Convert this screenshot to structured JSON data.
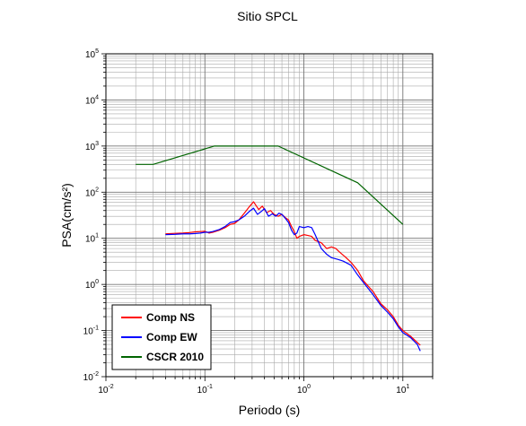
{
  "chart_data": {
    "type": "line",
    "title": "Sitio SPCL",
    "xlabel": "Periodo (s)",
    "ylabel": "PSA(cm/s²)",
    "xscale": "log",
    "yscale": "log",
    "xlim": [
      0.01,
      20
    ],
    "ylim": [
      0.01,
      100000
    ],
    "x_ticks": [
      {
        "base": "10",
        "exp": "-2"
      },
      {
        "base": "10",
        "exp": "-1"
      },
      {
        "base": "10",
        "exp": "0"
      },
      {
        "base": "10",
        "exp": "1"
      }
    ],
    "y_ticks": [
      {
        "base": "10",
        "exp": "-2"
      },
      {
        "base": "10",
        "exp": "-1"
      },
      {
        "base": "10",
        "exp": "0"
      },
      {
        "base": "10",
        "exp": "1"
      },
      {
        "base": "10",
        "exp": "2"
      },
      {
        "base": "10",
        "exp": "3"
      },
      {
        "base": "10",
        "exp": "4"
      },
      {
        "base": "10",
        "exp": "5"
      }
    ],
    "grid": true,
    "legend_position": "bottom-left",
    "series": [
      {
        "name": "Comp NS",
        "color": "#ff0000",
        "points": [
          [
            0.04,
            12.5
          ],
          [
            0.05,
            12.8
          ],
          [
            0.06,
            13.0
          ],
          [
            0.07,
            13.3
          ],
          [
            0.08,
            13.8
          ],
          [
            0.09,
            14.0
          ],
          [
            0.1,
            14.2
          ],
          [
            0.11,
            13.0
          ],
          [
            0.12,
            13.5
          ],
          [
            0.14,
            15.0
          ],
          [
            0.16,
            17.0
          ],
          [
            0.18,
            20.0
          ],
          [
            0.2,
            21.0
          ],
          [
            0.22,
            25.0
          ],
          [
            0.25,
            35.0
          ],
          [
            0.28,
            48.0
          ],
          [
            0.31,
            62.0
          ],
          [
            0.35,
            42.0
          ],
          [
            0.38,
            50.0
          ],
          [
            0.42,
            36.0
          ],
          [
            0.46,
            40.0
          ],
          [
            0.5,
            33.0
          ],
          [
            0.55,
            30.0
          ],
          [
            0.6,
            33.0
          ],
          [
            0.65,
            28.0
          ],
          [
            0.7,
            25.0
          ],
          [
            0.75,
            18.0
          ],
          [
            0.8,
            14.0
          ],
          [
            0.85,
            10.0
          ],
          [
            0.9,
            11.0
          ],
          [
            1.0,
            12.0
          ],
          [
            1.1,
            11.5
          ],
          [
            1.2,
            11.0
          ],
          [
            1.3,
            9.0
          ],
          [
            1.5,
            8.0
          ],
          [
            1.7,
            6.0
          ],
          [
            1.9,
            6.5
          ],
          [
            2.1,
            6.0
          ],
          [
            2.3,
            5.0
          ],
          [
            2.6,
            4.0
          ],
          [
            3.0,
            3.0
          ],
          [
            3.5,
            2.0
          ],
          [
            4.0,
            1.2
          ],
          [
            4.5,
            0.9
          ],
          [
            5.0,
            0.7
          ],
          [
            6.0,
            0.38
          ],
          [
            7.0,
            0.28
          ],
          [
            8.0,
            0.2
          ],
          [
            9.0,
            0.13
          ],
          [
            10.0,
            0.1
          ],
          [
            12.0,
            0.075
          ],
          [
            14.0,
            0.055
          ],
          [
            15.0,
            0.048
          ]
        ]
      },
      {
        "name": "Comp EW",
        "color": "#0000ff",
        "points": [
          [
            0.04,
            12.0
          ],
          [
            0.05,
            12.2
          ],
          [
            0.06,
            12.5
          ],
          [
            0.07,
            12.5
          ],
          [
            0.08,
            12.7
          ],
          [
            0.09,
            13.0
          ],
          [
            0.1,
            13.5
          ],
          [
            0.11,
            13.5
          ],
          [
            0.12,
            14.0
          ],
          [
            0.14,
            15.5
          ],
          [
            0.16,
            18.0
          ],
          [
            0.18,
            22.0
          ],
          [
            0.2,
            23.0
          ],
          [
            0.22,
            25.0
          ],
          [
            0.25,
            30.0
          ],
          [
            0.28,
            38.0
          ],
          [
            0.31,
            45.0
          ],
          [
            0.34,
            33.0
          ],
          [
            0.37,
            38.0
          ],
          [
            0.4,
            44.0
          ],
          [
            0.44,
            30.0
          ],
          [
            0.48,
            34.0
          ],
          [
            0.52,
            30.0
          ],
          [
            0.56,
            35.0
          ],
          [
            0.6,
            33.0
          ],
          [
            0.65,
            27.0
          ],
          [
            0.7,
            22.0
          ],
          [
            0.75,
            15.0
          ],
          [
            0.8,
            12.0
          ],
          [
            0.85,
            13.0
          ],
          [
            0.9,
            18.0
          ],
          [
            1.0,
            17.0
          ],
          [
            1.1,
            18.0
          ],
          [
            1.2,
            17.0
          ],
          [
            1.3,
            12.0
          ],
          [
            1.5,
            6.0
          ],
          [
            1.7,
            4.5
          ],
          [
            1.9,
            3.8
          ],
          [
            2.2,
            3.5
          ],
          [
            2.5,
            3.2
          ],
          [
            3.0,
            2.6
          ],
          [
            3.5,
            1.6
          ],
          [
            4.0,
            1.1
          ],
          [
            4.5,
            0.8
          ],
          [
            5.0,
            0.6
          ],
          [
            6.0,
            0.35
          ],
          [
            7.0,
            0.25
          ],
          [
            8.0,
            0.18
          ],
          [
            9.0,
            0.12
          ],
          [
            10.0,
            0.09
          ],
          [
            12.0,
            0.07
          ],
          [
            14.0,
            0.05
          ],
          [
            15.0,
            0.036
          ]
        ]
      },
      {
        "name": "CSCR 2010",
        "color": "#006400",
        "points": [
          [
            0.02,
            400
          ],
          [
            0.03,
            400
          ],
          [
            0.125,
            1000
          ],
          [
            0.55,
            1000
          ],
          [
            3.5,
            160
          ],
          [
            10.0,
            20
          ]
        ]
      }
    ]
  }
}
